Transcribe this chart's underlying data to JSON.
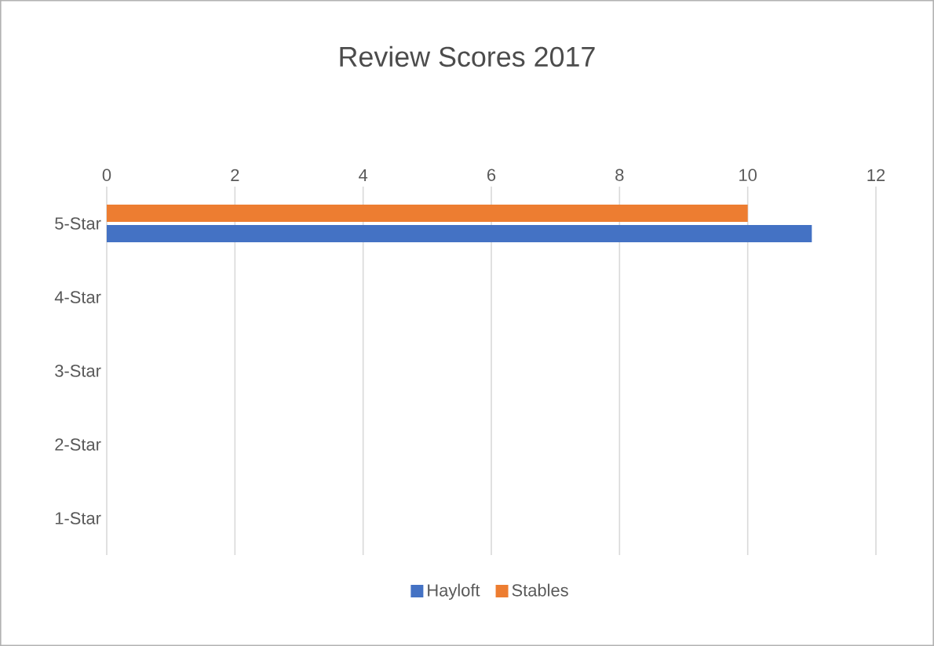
{
  "chart_data": {
    "type": "bar",
    "orientation": "horizontal",
    "title": "Review Scores 2017",
    "categories": [
      "5-Star",
      "4-Star",
      "3-Star",
      "2-Star",
      "1-Star"
    ],
    "series": [
      {
        "name": "Hayloft",
        "color": "#4472c4",
        "values": [
          11,
          0,
          0,
          0,
          0
        ]
      },
      {
        "name": "Stables",
        "color": "#ed7d31",
        "values": [
          10,
          0,
          0,
          0,
          0
        ]
      }
    ],
    "xlim": [
      0,
      12
    ],
    "xticks": [
      0,
      2,
      4,
      6,
      8,
      10,
      12
    ],
    "grid": "x",
    "legend": "bottom"
  }
}
